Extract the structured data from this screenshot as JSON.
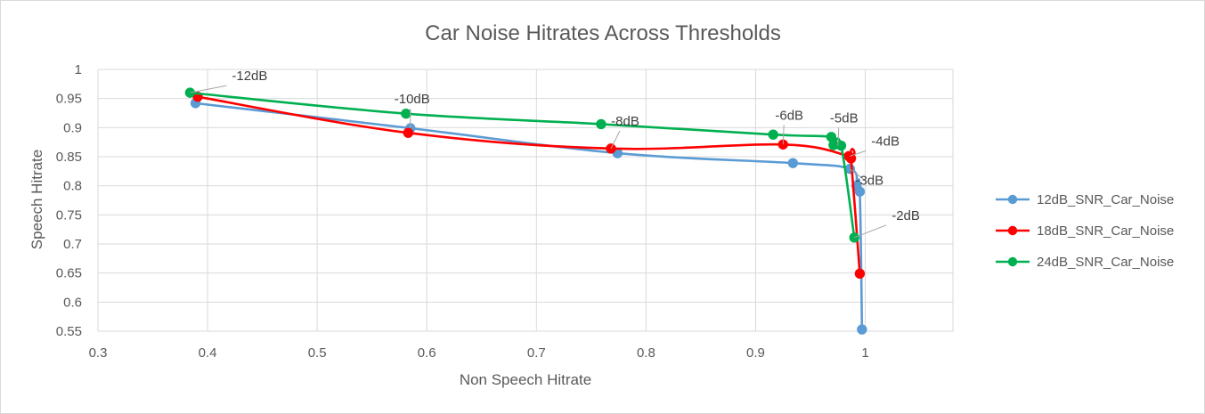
{
  "chart_data": {
    "type": "scatter",
    "title": "Car Noise Hitrates Across Thresholds",
    "xlabel": "Non Speech Hitrate",
    "ylabel": "Speech Hitrate",
    "xlim": [
      0.3,
      1.08
    ],
    "ylim": [
      0.55,
      1.0
    ],
    "xticks": [
      0.3,
      0.4,
      0.5,
      0.6,
      0.7,
      0.8,
      0.9,
      1.0
    ],
    "xtick_labels": [
      "0.3",
      "0.4",
      "0.5",
      "0.6",
      "0.7",
      "0.8",
      "0.9",
      "1"
    ],
    "yticks": [
      0.55,
      0.6,
      0.65,
      0.7,
      0.75,
      0.8,
      0.85,
      0.9,
      0.95,
      1.0
    ],
    "ytick_labels": [
      "0.55",
      "0.6",
      "0.65",
      "0.7",
      "0.75",
      "0.8",
      "0.85",
      "0.9",
      "0.95",
      "1"
    ],
    "grid": true,
    "legend_position": "right",
    "series": [
      {
        "name": "12dB_SNR_Car_Noise",
        "color": "#5b9bd5",
        "x": [
          0.389,
          0.585,
          0.774,
          0.934,
          0.986,
          0.992,
          0.995,
          0.997
        ],
        "y": [
          0.942,
          0.899,
          0.856,
          0.839,
          0.829,
          0.8,
          0.79,
          0.553
        ]
      },
      {
        "name": "18dB_SNR_Car_Noise",
        "color": "#ff0000",
        "x": [
          0.391,
          0.583,
          0.768,
          0.925,
          0.985,
          0.987,
          0.995
        ],
        "y": [
          0.953,
          0.891,
          0.864,
          0.871,
          0.851,
          0.847,
          0.649
        ]
      },
      {
        "name": "24dB_SNR_Car_Noise",
        "color": "#00b050",
        "x": [
          0.384,
          0.581,
          0.759,
          0.916,
          0.969,
          0.971,
          0.978,
          0.99
        ],
        "y": [
          0.96,
          0.924,
          0.906,
          0.888,
          0.884,
          0.87,
          0.869,
          0.711
        ]
      }
    ],
    "annotations": [
      {
        "text": "-12dB",
        "x": 0.384,
        "y": 0.96
      },
      {
        "text": "-10dB",
        "x": 0.585,
        "y": 0.899
      },
      {
        "text": "-8dB",
        "x": 0.768,
        "y": 0.864
      },
      {
        "text": "-6dB",
        "x": 0.925,
        "y": 0.871
      },
      {
        "text": "-5dB",
        "x": 0.975,
        "y": 0.869
      },
      {
        "text": "-4dB",
        "x": 0.986,
        "y": 0.851
      },
      {
        "text": "-3dB",
        "x": 0.986,
        "y": 0.829
      },
      {
        "text": "-2dB",
        "x": 0.99,
        "y": 0.711
      }
    ]
  }
}
